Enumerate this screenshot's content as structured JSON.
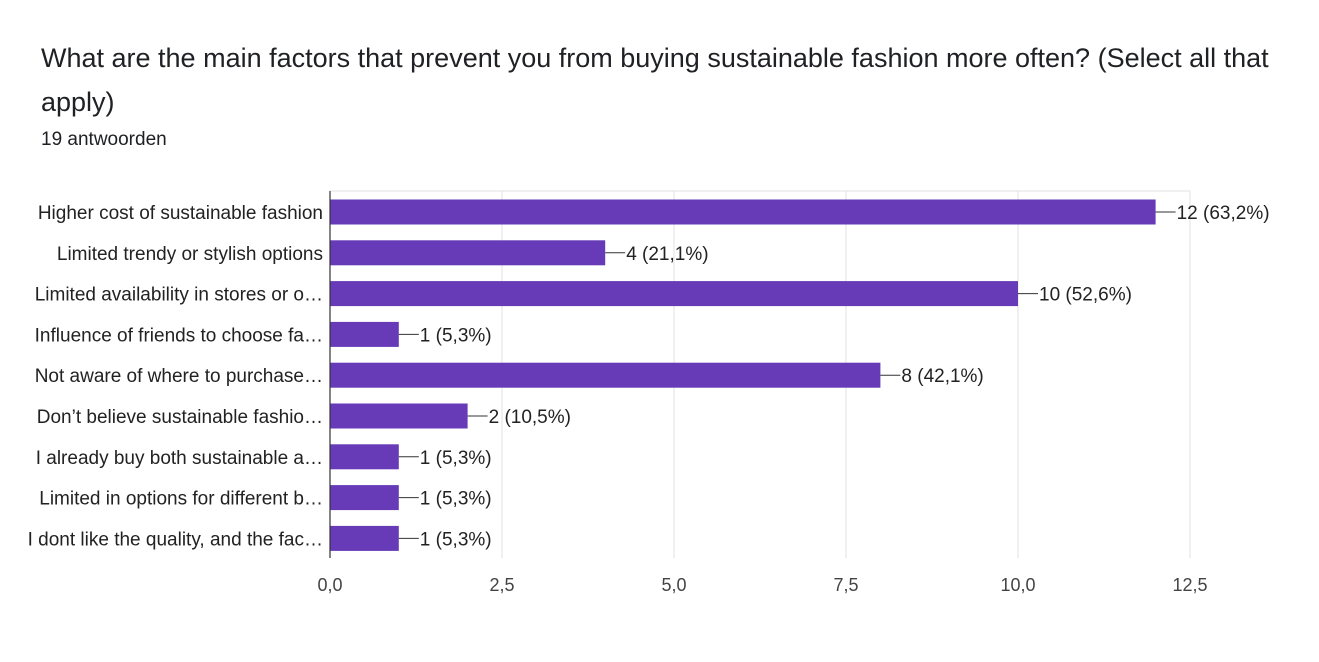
{
  "question": {
    "title": "What are the main factors that prevent you from buying sustainable fashion more often? (Select all that apply)",
    "response_count": "19 antwoorden"
  },
  "colors": {
    "bar": "#673ab7",
    "grid": "#e0e0e0",
    "axis": "#333333"
  },
  "chart_data": {
    "type": "bar",
    "orientation": "horizontal",
    "title": "What are the main factors that prevent you from buying sustainable fashion more often? (Select all that apply)",
    "categories": [
      "Higher cost of sustainable fashion",
      "Limited trendy or stylish options",
      "Limited availability in stores or o…",
      "Influence of friends to choose fa…",
      "Not aware of where to purchase…",
      "Don’t believe sustainable fashio…",
      "I already buy both sustainable a…",
      "Limited in options for different b…",
      "I dont like the quality, and the fac…"
    ],
    "values": [
      12,
      4,
      10,
      1,
      8,
      2,
      1,
      1,
      1
    ],
    "value_labels": [
      "12 (63,2%)",
      "4 (21,1%)",
      "10 (52,6%)",
      "1 (5,3%)",
      "8 (42,1%)",
      "2 (10,5%)",
      "1 (5,3%)",
      "1 (5,3%)",
      "1 (5,3%)"
    ],
    "xlim": [
      0,
      12.5
    ],
    "x_ticks": [
      0,
      2.5,
      5,
      7.5,
      10,
      12.5
    ],
    "x_tick_labels": [
      "0,0",
      "2,5",
      "5,0",
      "7,5",
      "10,0",
      "12,5"
    ],
    "xlabel": "",
    "ylabel": "",
    "grid": true,
    "legend": "none"
  }
}
